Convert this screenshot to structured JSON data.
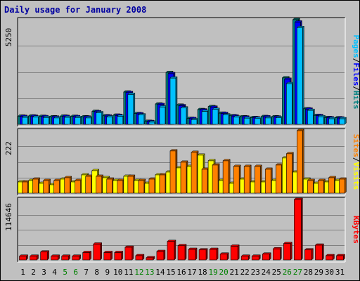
{
  "chart_data": {
    "type": "bar",
    "title": "Daily usage for January 2008",
    "categories": [
      "1",
      "2",
      "3",
      "4",
      "5",
      "6",
      "7",
      "8",
      "9",
      "10",
      "11",
      "12",
      "13",
      "14",
      "15",
      "16",
      "17",
      "18",
      "19",
      "20",
      "21",
      "22",
      "23",
      "24",
      "25",
      "26",
      "27",
      "28",
      "29",
      "30",
      "31"
    ],
    "weekend_days": [
      "5",
      "6",
      "12",
      "13",
      "19",
      "20",
      "26",
      "27"
    ],
    "panels": [
      {
        "id": "hits",
        "ymax_label": "5250",
        "ylim": [
          0,
          5250
        ],
        "right_label": [
          {
            "text": "Pages",
            "color": "#00c0ff"
          },
          {
            "text": "/",
            "color": "#000000"
          },
          {
            "text": "Files",
            "color": "#0000ff"
          },
          {
            "text": "/",
            "color": "#000000"
          },
          {
            "text": "Hits",
            "color": "#008080"
          }
        ],
        "series": [
          {
            "name": "Hits",
            "color": "#008080",
            "values": [
              410,
              420,
              400,
              380,
              410,
              400,
              380,
              650,
              430,
              460,
              1620,
              540,
              150,
              1020,
              2600,
              960,
              300,
              740,
              890,
              560,
              430,
              380,
              340,
              390,
              380,
              2330,
              5250,
              780,
              450,
              340,
              330
            ]
          },
          {
            "name": "Files",
            "color": "#0000ff",
            "values": [
              395,
              405,
              385,
              365,
              395,
              385,
              365,
              630,
              415,
              445,
              1590,
              525,
              140,
              990,
              2540,
              930,
              285,
              720,
              860,
              540,
              415,
              365,
              325,
              375,
              365,
              2260,
              5130,
              760,
              435,
              325,
              315
            ]
          },
          {
            "name": "Pages",
            "color": "#00c0ff",
            "values": [
              350,
              360,
              340,
              320,
              350,
              340,
              320,
              580,
              370,
              400,
              1500,
              470,
              110,
              870,
              2320,
              820,
              230,
              650,
              750,
              470,
              360,
              310,
              290,
              320,
              330,
              2040,
              4850,
              700,
              380,
              280,
              280
            ]
          }
        ]
      },
      {
        "id": "visits",
        "ymax_label": "222",
        "ylim": [
          0,
          222
        ],
        "right_label": [
          {
            "text": "Sites",
            "color": "#ff8000"
          },
          {
            "text": "/",
            "color": "#000000"
          },
          {
            "text": "Visits",
            "color": "#ffff00"
          }
        ],
        "series": [
          {
            "name": "Visits",
            "color": "#ffff00",
            "values": [
              40,
              45,
              35,
              30,
              50,
              40,
              65,
              80,
              55,
              45,
              60,
              45,
              35,
              65,
              75,
              90,
              95,
              135,
              115,
              45,
              35,
              50,
              40,
              40,
              45,
              125,
              75,
              50,
              35,
              40,
              45
            ]
          },
          {
            "name": "Sites",
            "color": "#ff8000",
            "values": [
              40,
              50,
              45,
              45,
              55,
              45,
              60,
              60,
              50,
              45,
              60,
              45,
              50,
              65,
              150,
              110,
              145,
              85,
              100,
              115,
              95,
              95,
              95,
              85,
              100,
              140,
              222,
              45,
              45,
              55,
              50
            ]
          }
        ]
      },
      {
        "id": "kbytes",
        "ymax_label": "114646",
        "ylim": [
          0,
          114646
        ],
        "right_label": [
          {
            "text": "KBytes",
            "color": "#ff0000"
          }
        ],
        "series": [
          {
            "name": "KBytes",
            "color": "#ff0000",
            "values": [
              7000,
              7000,
              15000,
              7000,
              7000,
              7000,
              14000,
              30000,
              14000,
              14000,
              24000,
              8000,
              4000,
              16000,
              35000,
              27000,
              20000,
              19000,
              20000,
              11000,
              26000,
              7000,
              7000,
              11000,
              21000,
              31000,
              114646,
              19000,
              28000,
              8000,
              8000
            ]
          }
        ]
      }
    ]
  }
}
